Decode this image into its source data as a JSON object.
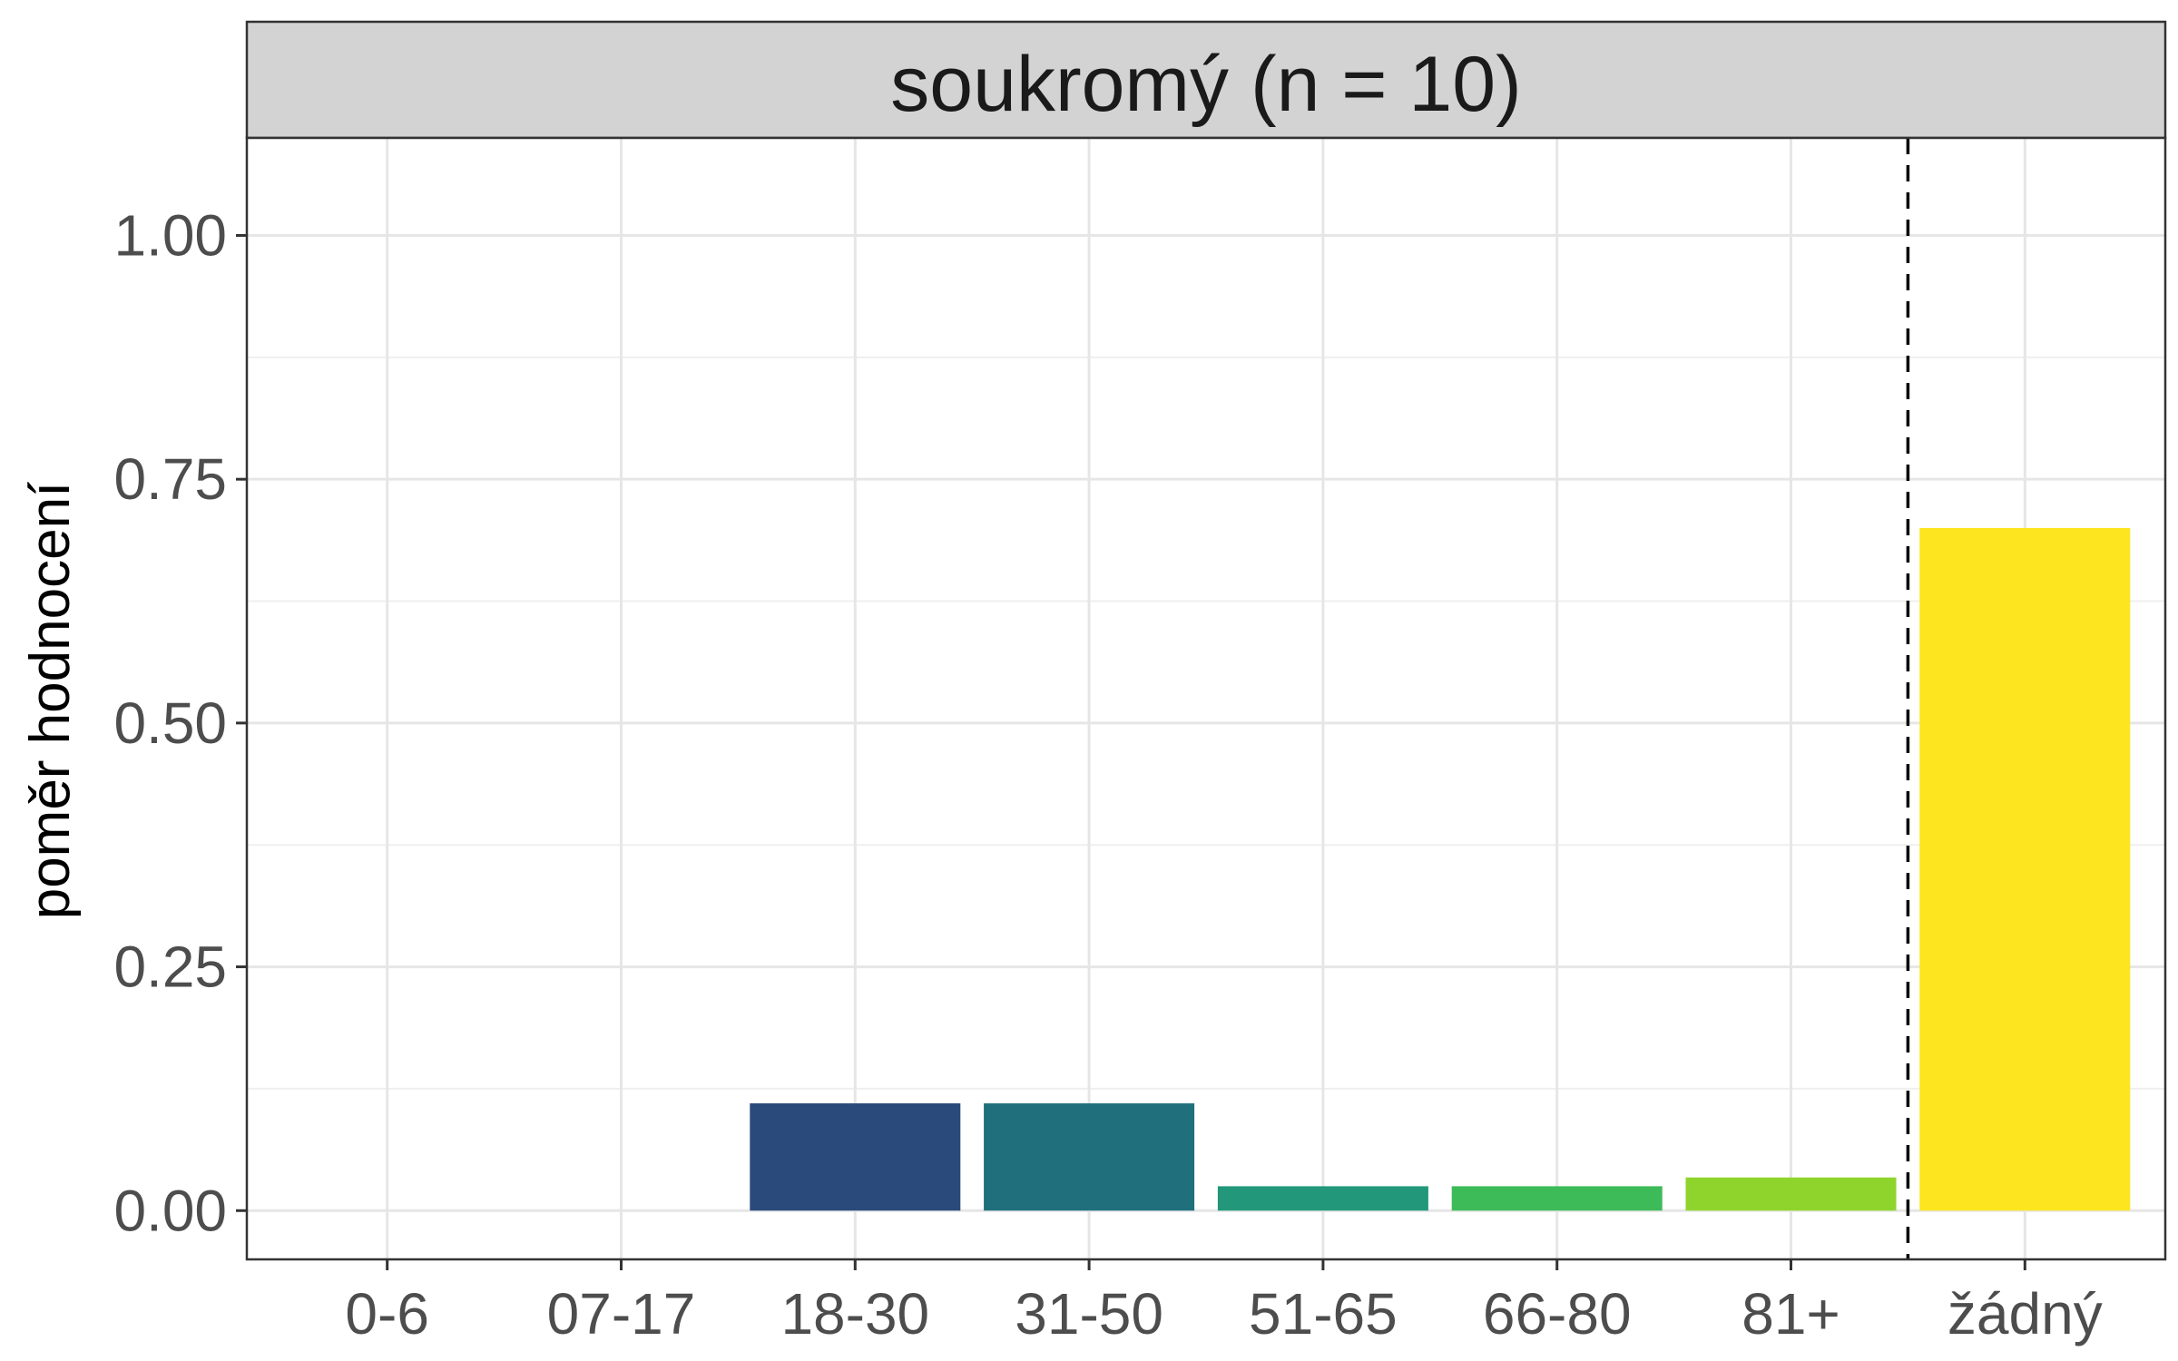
{
  "chart_data": {
    "type": "bar",
    "title": "",
    "facet_label": "soukromý (n = 10)",
    "xlabel": "",
    "ylabel": "poměr hodnocení",
    "categories": [
      "0-6",
      "07-17",
      "18-30",
      "31-50",
      "51-65",
      "66-80",
      "81+",
      "žádný"
    ],
    "values": [
      0,
      0,
      0.11,
      0.11,
      0.025,
      0.025,
      0.034,
      0.7
    ],
    "colors": [
      "#440154",
      "#46327e",
      "#2a4a7b",
      "#206f7c",
      "#22977a",
      "#3cbb58",
      "#8fd42c",
      "#fde51f"
    ],
    "ylim": [
      -0.05,
      1.1
    ],
    "yticks": [
      0,
      0.25,
      0.5,
      0.75,
      1.0
    ],
    "ytick_labels": [
      "0.00",
      "0.25",
      "0.50",
      "0.75",
      "1.00"
    ],
    "grid": true,
    "reference_line": {
      "between": [
        "81+",
        "žádný"
      ],
      "style": "dashed",
      "color": "#000000"
    }
  }
}
